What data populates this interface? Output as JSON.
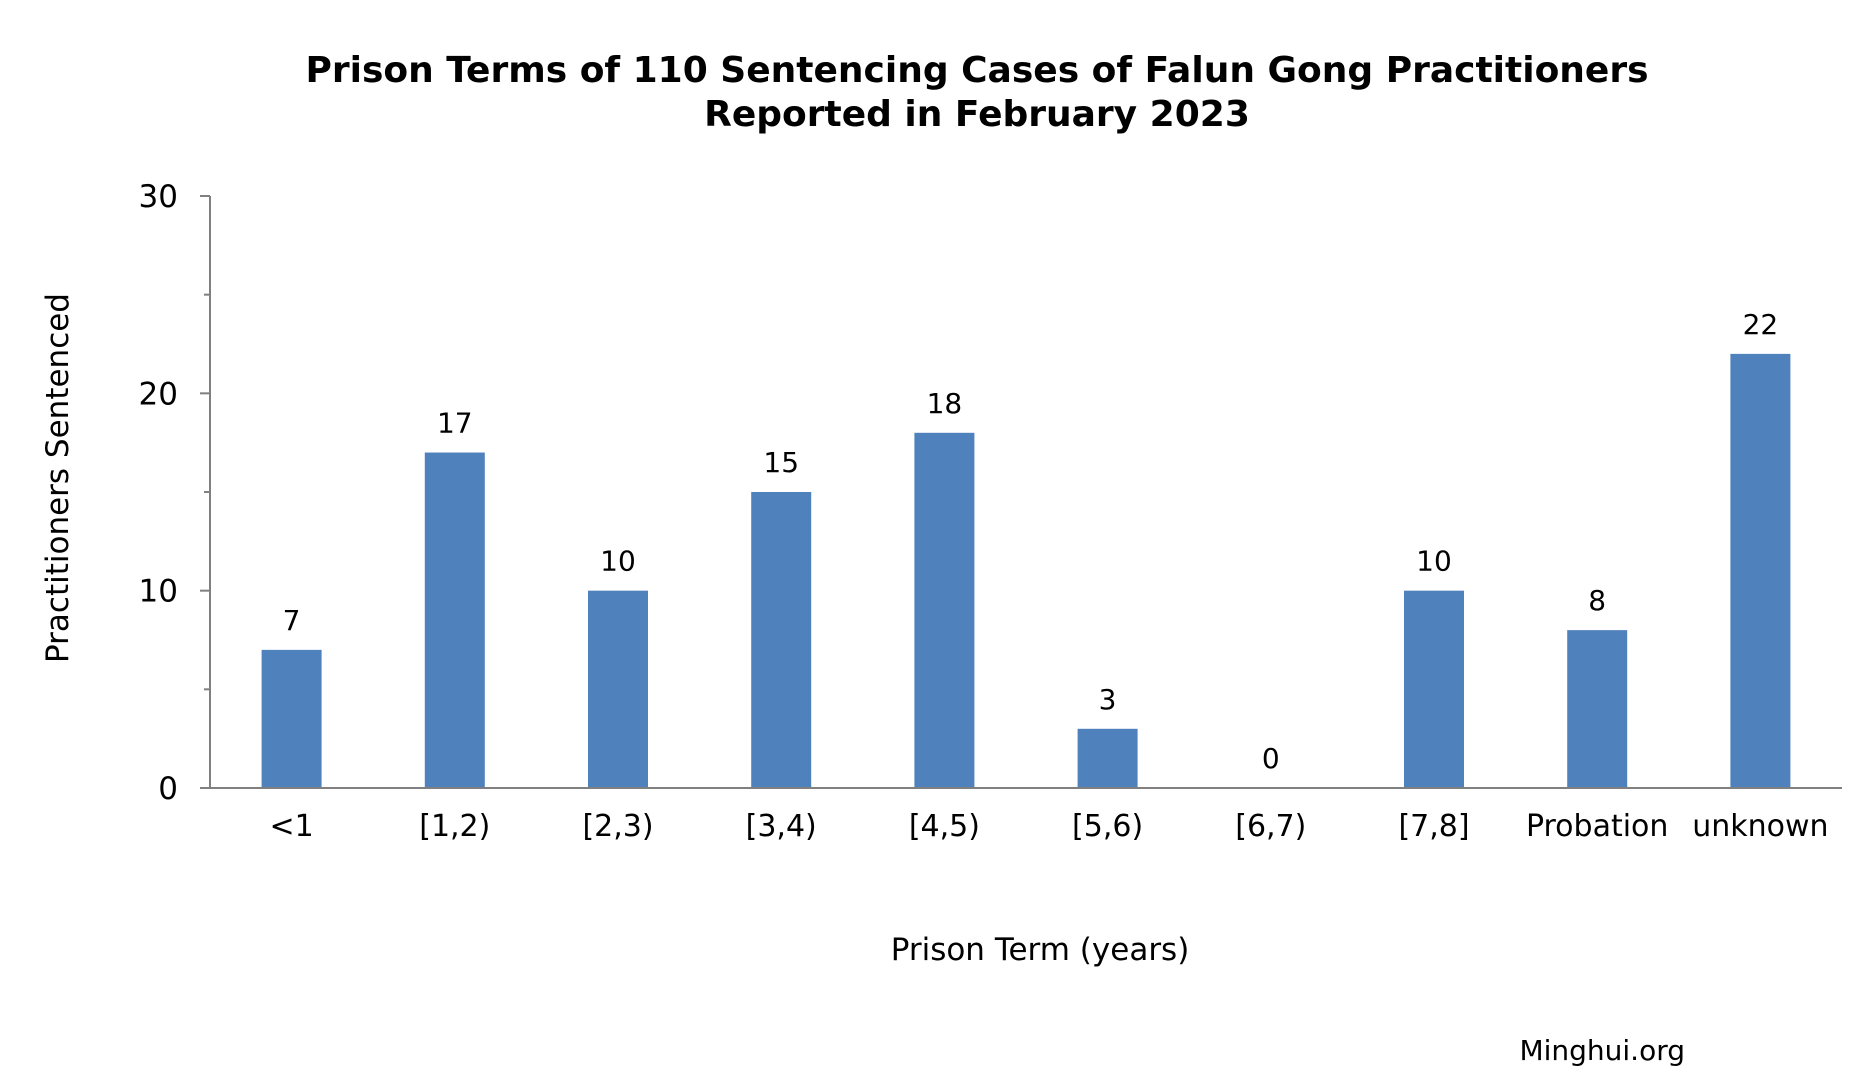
{
  "chart_data": {
    "type": "bar",
    "title": "Prison Terms of 110 Sentencing Cases of Falun Gong Practitioners",
    "subtitle": "Reported in February 2023",
    "xlabel": "Prison Term (years)",
    "ylabel": "Practitioners Sentenced",
    "categories": [
      "<1",
      "[1,2)",
      "[2,3)",
      "[3,4)",
      "[4,5)",
      "[5,6)",
      "[6,7)",
      "[7,8]",
      "Probation",
      "unknown"
    ],
    "values": [
      7,
      17,
      10,
      15,
      18,
      3,
      0,
      10,
      8,
      22
    ],
    "ylim": [
      0,
      30
    ],
    "yticks": [
      0,
      10,
      20,
      30
    ],
    "grid": false,
    "legend": "none",
    "bar_color": "#4F81BD",
    "source": "Minghui.org"
  }
}
